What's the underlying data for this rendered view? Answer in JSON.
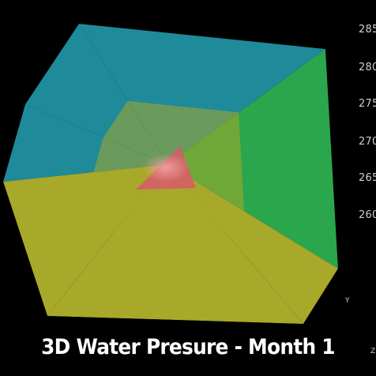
{
  "chart_data": {
    "type": "surface-3d",
    "title": "3D Water Presure - Month 1",
    "z_ticks": [
      "285",
      "280",
      "275",
      "270",
      "265",
      "260"
    ],
    "axis_letters": {
      "y": "Y",
      "z": "Z"
    },
    "colors": {
      "background": "#000000",
      "low": "#1f8a9a",
      "mid": "#2aa64c",
      "high": "#a8a82a",
      "peak": "#d85a6a"
    }
  }
}
